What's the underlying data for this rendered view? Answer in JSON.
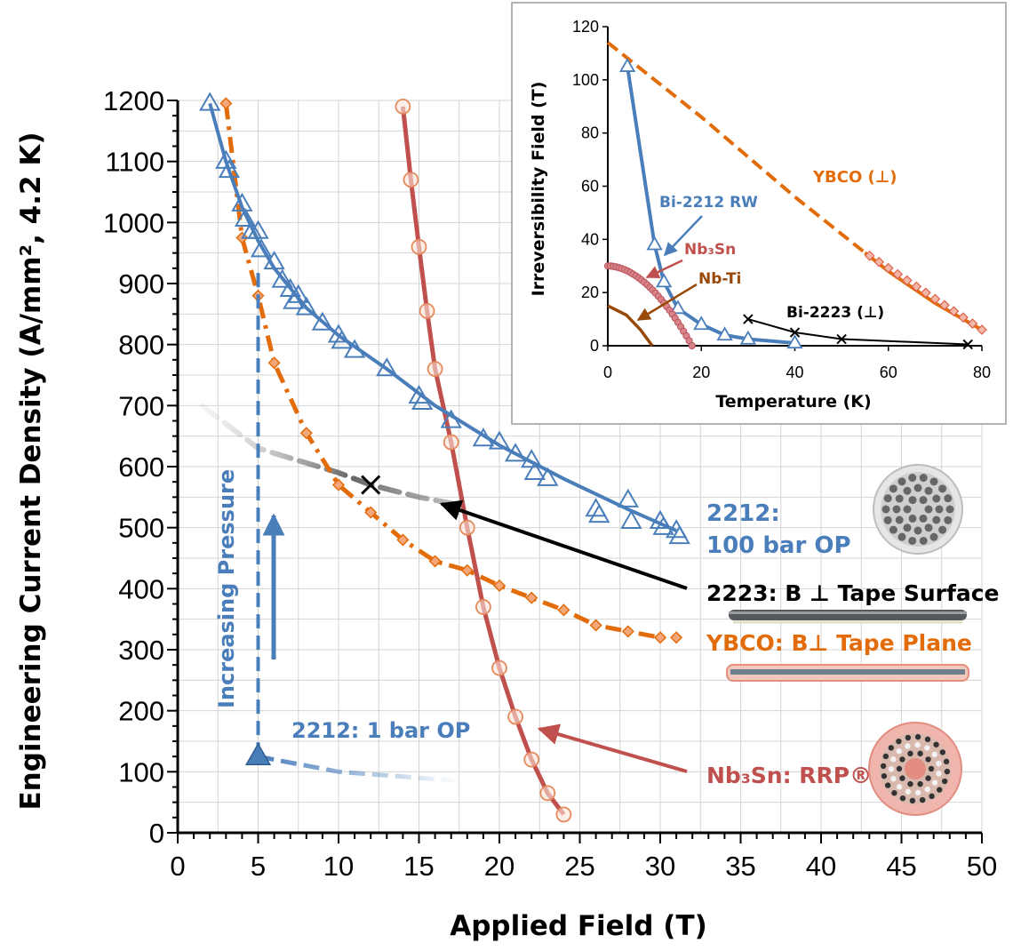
{
  "chart_data": [
    {
      "type": "line",
      "xlabel": "Applied Field (T)",
      "ylabel": "Engineering Current Density (A/mm², 4.2 K)",
      "xlim": [
        0,
        50
      ],
      "ylim": [
        0,
        1200
      ],
      "x_ticks": [
        "0",
        "5",
        "10",
        "15",
        "20",
        "25",
        "30",
        "35",
        "40",
        "45",
        "50"
      ],
      "y_ticks": [
        "0",
        "100",
        "200",
        "300",
        "400",
        "500",
        "600",
        "700",
        "800",
        "900",
        "1000",
        "1100",
        "1200"
      ],
      "grid": true,
      "series": [
        {
          "name": "2212: 100 bar OP",
          "color": "#4a7ebb",
          "style": "solid-with-triangles",
          "x": [
            2,
            3,
            3.2,
            4,
            4.2,
            4.6,
            5,
            5.2,
            6,
            6.5,
            7,
            7.2,
            7.5,
            8,
            9,
            10,
            10.2,
            11,
            13,
            15,
            15.2,
            17,
            19,
            20,
            21,
            22,
            22.2,
            23,
            26,
            26.2,
            28,
            28.2,
            30,
            30.2,
            31,
            31.2
          ],
          "y": [
            1195,
            1100,
            1085,
            1030,
            1005,
            985,
            985,
            955,
            935,
            905,
            890,
            870,
            880,
            860,
            835,
            815,
            805,
            790,
            760,
            715,
            705,
            675,
            645,
            640,
            620,
            610,
            590,
            580,
            530,
            520,
            545,
            510,
            510,
            500,
            495,
            485
          ]
        },
        {
          "name": "2212: 1 bar OP",
          "color": "#4a7ebb",
          "style": "dashed-fading",
          "x": [
            5,
            10,
            15,
            17.5
          ],
          "y": [
            125,
            100,
            90,
            85
          ]
        },
        {
          "name": "2223: B ⊥ Tape Surface",
          "color": "#333333",
          "style": "dashed-fading",
          "x": [
            1.5,
            5,
            10,
            12,
            15,
            17
          ],
          "y": [
            700,
            630,
            590,
            570,
            550,
            540
          ]
        },
        {
          "name": "YBCO: B⊥ Tape Plane",
          "color": "#e36c0a",
          "style": "dash-dot-with-diamonds",
          "x": [
            3,
            4,
            5,
            6,
            8,
            10,
            12,
            14,
            16,
            18,
            20,
            22,
            24,
            26,
            28,
            30,
            31
          ],
          "y": [
            1195,
            975,
            880,
            770,
            655,
            570,
            525,
            480,
            445,
            430,
            405,
            385,
            365,
            340,
            330,
            320,
            320
          ]
        },
        {
          "name": "Nb₃Sn: RRP®",
          "color": "#c0504d",
          "style": "solid-with-circles",
          "x": [
            14,
            14.5,
            15,
            15.5,
            16,
            17,
            18,
            19,
            20,
            21,
            22,
            23,
            24
          ],
          "y": [
            1190,
            1070,
            960,
            855,
            760,
            640,
            500,
            370,
            270,
            190,
            120,
            65,
            30
          ]
        }
      ],
      "annotations": [
        "Increasing Pressure",
        "2212:",
        "100 bar OP",
        "2223: B ⊥ Tape Surface",
        "YBCO: B⊥ Tape Plane",
        "2212: 1 bar OP",
        "Nb₃Sn: RRP®"
      ]
    },
    {
      "type": "line",
      "xlabel": "Temperature (K)",
      "ylabel": "Irreversibility Field (T)",
      "xlim": [
        0,
        80
      ],
      "ylim": [
        0,
        120
      ],
      "x_ticks": [
        "0",
        "20",
        "40",
        "60",
        "80"
      ],
      "y_ticks": [
        "0",
        "20",
        "40",
        "60",
        "80",
        "100",
        "120"
      ],
      "series": [
        {
          "name": "YBCO (⊥)",
          "color": "#e36c0a",
          "style": "dashed-then-diamonds",
          "x": [
            0,
            10,
            20,
            30,
            40,
            50,
            55,
            60,
            65,
            70,
            75,
            80
          ],
          "y": [
            114,
            100,
            86,
            71,
            56,
            42,
            35,
            28,
            22,
            16,
            11,
            6
          ]
        },
        {
          "name": "Bi-2212 RW",
          "color": "#4a7ebb",
          "style": "solid-with-triangles",
          "x": [
            4.2,
            10,
            12,
            15,
            20,
            25,
            30,
            40
          ],
          "y": [
            105,
            38,
            24,
            14,
            8,
            4,
            2.5,
            1
          ]
        },
        {
          "name": "Nb₃Sn",
          "color": "#c0504d",
          "style": "dots",
          "x": [
            0,
            4,
            8,
            12,
            16,
            18
          ],
          "y": [
            30,
            27,
            21,
            13,
            4,
            0
          ]
        },
        {
          "name": "Nb-Ti",
          "color": "#984807",
          "style": "solid",
          "x": [
            0,
            4,
            7,
            9.5
          ],
          "y": [
            15,
            11.5,
            6,
            0
          ]
        },
        {
          "name": "Bi-2223 (⊥)",
          "color": "#000000",
          "style": "solid-with-crosses",
          "x": [
            30,
            40,
            50,
            77
          ],
          "y": [
            10,
            5,
            2.5,
            0.5
          ]
        }
      ],
      "annotations": [
        "YBCO (⊥)",
        "Bi-2212 RW",
        "Nb₃Sn",
        "Nb-Ti",
        "Bi-2223 (⊥)"
      ]
    }
  ],
  "labels": {
    "increasing_pressure": "Increasing Pressure",
    "op100_line1": "2212:",
    "op100_line2": "100 bar OP",
    "b2223": "2223: B ⊥ Tape Surface",
    "ybco": "YBCO: B⊥ Tape Plane",
    "op1": "2212: 1 bar OP",
    "nb3sn_main": "Nb₃Sn: RRP®",
    "in_ybco": "YBCO (⊥)",
    "in_2212": "Bi-2212 RW",
    "in_nb3sn": "Nb₃Sn",
    "in_nbti": "Nb-Ti",
    "in_2223": "Bi-2223 (⊥)"
  },
  "colors": {
    "blue": "#4a7ebb",
    "orange": "#e36c0a",
    "red": "#c0504d",
    "brown": "#984807",
    "grid": "#d0d0d0"
  }
}
